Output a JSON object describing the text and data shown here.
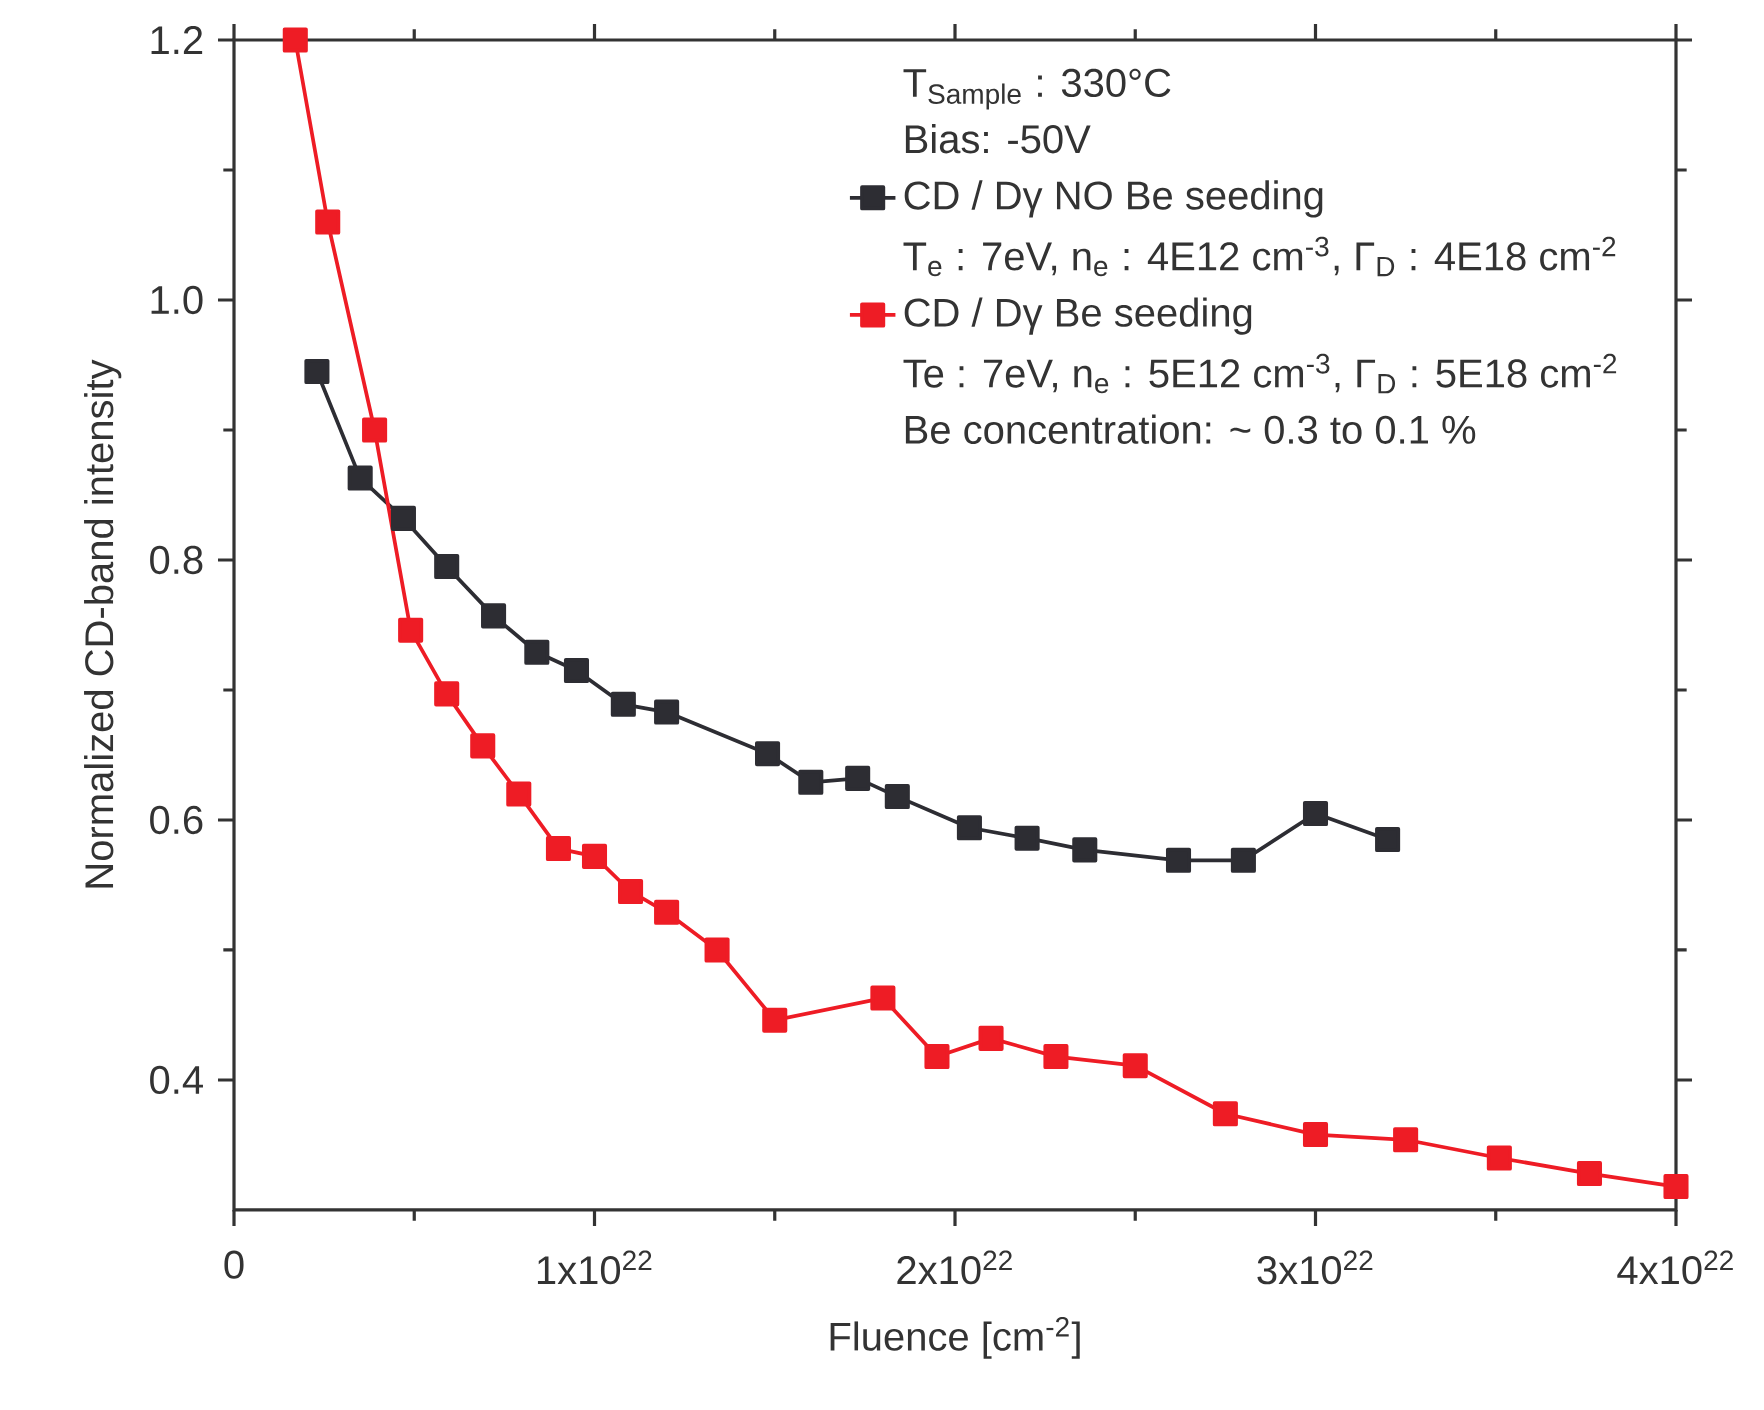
{
  "chart_data": {
    "type": "line",
    "xlabel": "Fluence [cm$^{-2}$]",
    "ylabel": "Normalized CD-band intensity",
    "xlim": [
      0,
      4e+22
    ],
    "ylim": [
      0.3,
      1.2
    ],
    "xticks": [
      0,
      {
        "value": 1e+22,
        "label": "1x10$^{22}$"
      },
      {
        "value": 2e+22,
        "label": "2x10$^{22}$"
      },
      {
        "value": 3e+22,
        "label": "3x10$^{22}$"
      },
      {
        "value": 4e+22,
        "label": "4x10$^{22}$"
      }
    ],
    "yticks": [
      0.4,
      0.6,
      0.8,
      {
        "value": 1.0,
        "label": "1.0"
      },
      1.2
    ],
    "grid": false,
    "legend": "top right",
    "marker": "square",
    "line_style": "solid",
    "annotations": [
      "T$_{Sample}$ : 330°C",
      "Bias: -50V",
      "T$_{e}$ : 7eV, n$_{e}$ : 4E12 cm$^{-3}$, Γ$_{D}$ : 4E18 cm$^{-2}$",
      "Te : 7eV, n$_{e}$ : 5E12 cm$^{-3}$, Γ$_{D}$ : 5E18 cm$^{-2}$",
      "Be concentration: ~ 0.3 to 0.1 %"
    ],
    "series": [
      {
        "name": "CD / Dγ  NO Be seeding",
        "color": "#2d2d33",
        "x": [
          2.3e+21,
          3.5e+21,
          4.7e+21,
          5.9e+21,
          7.2e+21,
          8.4e+21,
          9.5e+21,
          1.08e+22,
          1.2e+22,
          1.48e+22,
          1.6e+22,
          1.73e+22,
          1.84e+22,
          2.04e+22,
          2.2e+22,
          2.36e+22,
          2.62e+22,
          2.8e+22,
          3e+22,
          3.2e+22
        ],
        "values": [
          0.945,
          0.863,
          0.832,
          0.795,
          0.757,
          0.729,
          0.715,
          0.689,
          0.683,
          0.651,
          0.629,
          0.632,
          0.618,
          0.594,
          0.586,
          0.577,
          0.569,
          0.569,
          0.605,
          0.585
        ]
      },
      {
        "name": "CD / Dγ Be seeding",
        "color": "#ee1c25",
        "x": [
          1.7e+21,
          2.6e+21,
          3.9e+21,
          4.9e+21,
          5.9e+21,
          6.9e+21,
          7.9e+21,
          9e+21,
          1e+22,
          1.1e+22,
          1.2e+22,
          1.34e+22,
          1.5e+22,
          1.8e+22,
          1.95e+22,
          2.1e+22,
          2.28e+22,
          2.5e+22,
          2.75e+22,
          3e+22,
          3.25e+22,
          3.51e+22,
          3.76e+22,
          4e+22
        ],
        "values": [
          1.2,
          1.06,
          0.9,
          0.746,
          0.697,
          0.657,
          0.62,
          0.578,
          0.572,
          0.545,
          0.529,
          0.5,
          0.446,
          0.463,
          0.418,
          0.432,
          0.418,
          0.411,
          0.374,
          0.358,
          0.354,
          0.34,
          0.328,
          0.318
        ]
      }
    ]
  }
}
